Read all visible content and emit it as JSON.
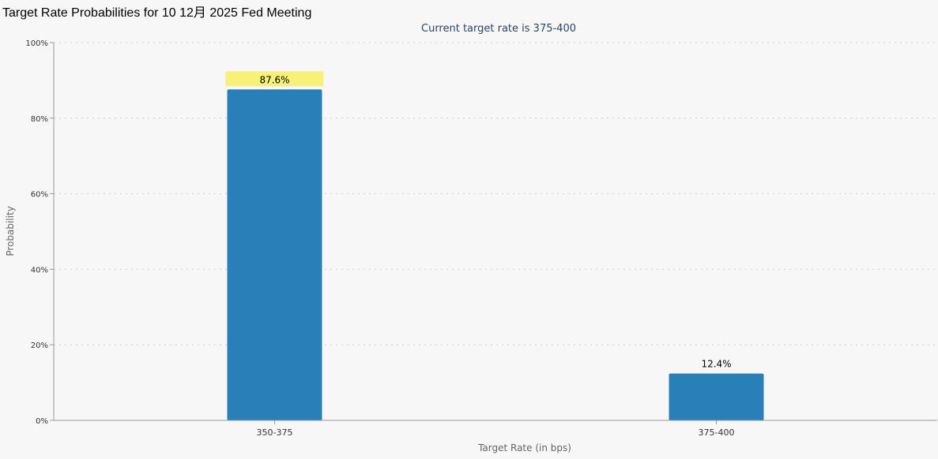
{
  "page": {
    "title": "Target Rate Probabilities for 10 12月 2025 Fed Meeting"
  },
  "chart_data": {
    "type": "bar",
    "title": "Target Rate Probabilities for 10 12月 2025 Fed Meeting",
    "subtitle": "Current target rate is 375-400",
    "xlabel": "Target Rate (in bps)",
    "ylabel": "Probability",
    "categories": [
      "350-375",
      "375-400"
    ],
    "values": [
      87.6,
      12.4
    ],
    "value_labels": [
      "87.6%",
      "12.4%"
    ],
    "highlighted_category": "350-375",
    "ylim": [
      0,
      100
    ],
    "yticks": [
      0,
      20,
      40,
      60,
      80,
      100
    ],
    "ytick_labels": [
      "0%",
      "20%",
      "40%",
      "60%",
      "80%",
      "100%"
    ],
    "grid": true,
    "legend": "none",
    "colors": {
      "bar": "#2980b9",
      "highlight": "#f7f17a",
      "grid": "#cccccc",
      "axis": "#999999",
      "background": "#f7f7f7"
    }
  }
}
